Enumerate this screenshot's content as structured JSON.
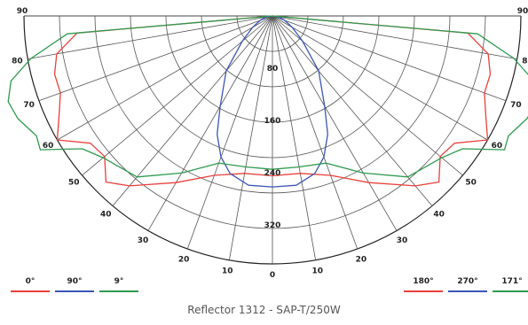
{
  "chart_data": {
    "type": "polar",
    "caption": "Reflector 1312 - SAP-T/250W",
    "angle_ticks_left": [
      "90",
      "80",
      "70",
      "60",
      "50",
      "40",
      "30",
      "20",
      "10",
      "0"
    ],
    "angle_ticks_right": [
      "10",
      "20",
      "30",
      "40",
      "50",
      "60",
      "70",
      "80",
      "90"
    ],
    "radial_ticks": [
      "80",
      "160",
      "240",
      "320"
    ],
    "radial_max": 380,
    "legend_left": [
      {
        "label": "0°",
        "color": "#e8403a"
      },
      {
        "label": "90°",
        "color": "#3b55b5"
      },
      {
        "label": "9°",
        "color": "#2e9a4e"
      }
    ],
    "legend_right": [
      {
        "label": "180°",
        "color": "#e8403a"
      },
      {
        "label": "270°",
        "color": "#3b55b5"
      },
      {
        "label": "171°",
        "color": "#2e9a4e"
      }
    ],
    "series": [
      {
        "name": "0°",
        "color": "#e8403a",
        "points": [
          [
            0,
            245
          ],
          [
            10,
            245
          ],
          [
            20,
            260
          ],
          [
            30,
            295
          ],
          [
            40,
            340
          ],
          [
            45,
            360
          ],
          [
            50,
            335
          ],
          [
            55,
            340
          ],
          [
            60,
            380
          ],
          [
            65,
            360
          ],
          [
            70,
            345
          ],
          [
            75,
            345
          ],
          [
            80,
            335
          ],
          [
            85,
            300
          ],
          [
            90,
            0
          ]
        ]
      },
      {
        "name": "90°",
        "color": "#3b55b5",
        "points": [
          [
            0,
            262
          ],
          [
            8,
            262
          ],
          [
            15,
            250
          ],
          [
            20,
            230
          ],
          [
            25,
            200
          ],
          [
            30,
            160
          ],
          [
            40,
            110
          ],
          [
            50,
            60
          ],
          [
            60,
            35
          ],
          [
            70,
            20
          ],
          [
            80,
            10
          ],
          [
            90,
            0
          ]
        ]
      },
      {
        "name": "9°",
        "color": "#2e9a4e",
        "points": [
          [
            0,
            235
          ],
          [
            10,
            235
          ],
          [
            20,
            240
          ],
          [
            30,
            278
          ],
          [
            40,
            322
          ],
          [
            50,
            338
          ],
          [
            55,
            355
          ],
          [
            60,
            410
          ],
          [
            63,
            405
          ],
          [
            68,
            420
          ],
          [
            72,
            425
          ],
          [
            76,
            412
          ],
          [
            80,
            375
          ],
          [
            85,
            315
          ],
          [
            90,
            0
          ]
        ]
      }
    ]
  }
}
